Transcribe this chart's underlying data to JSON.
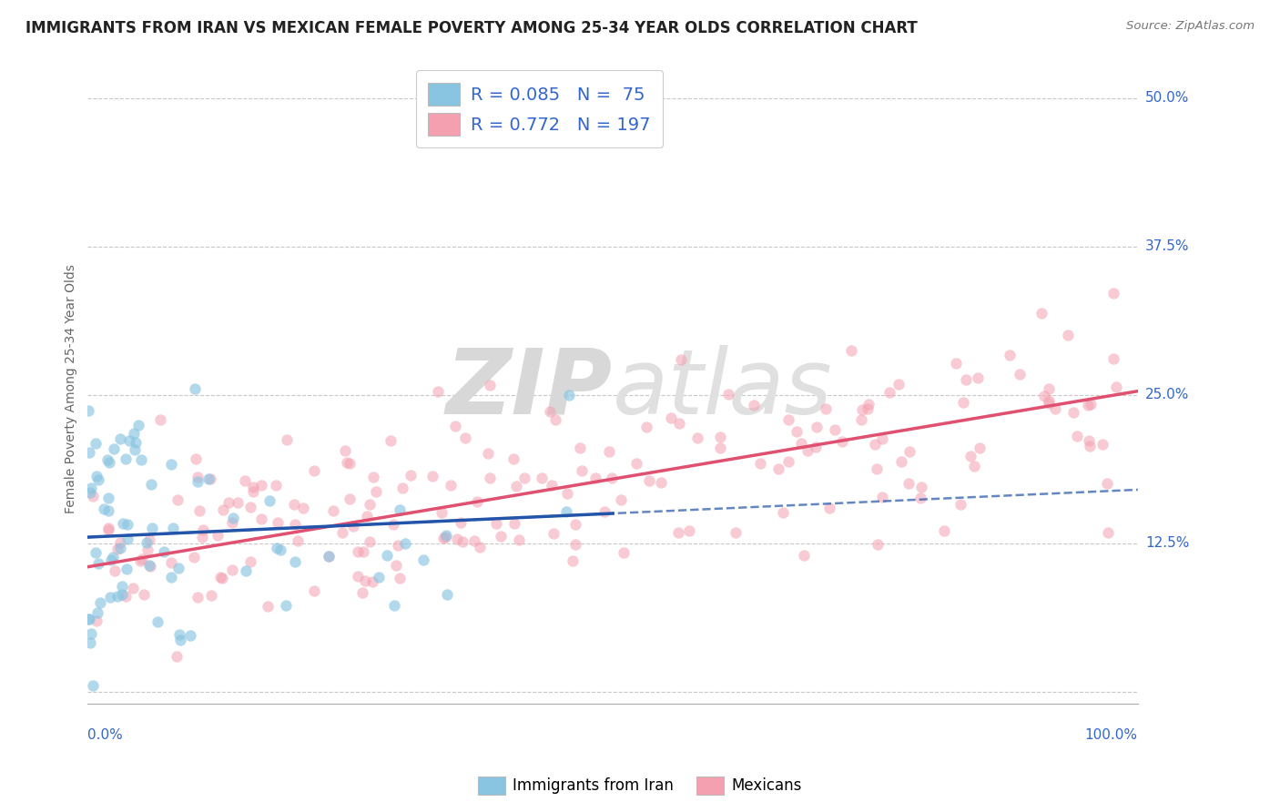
{
  "title": "IMMIGRANTS FROM IRAN VS MEXICAN FEMALE POVERTY AMONG 25-34 YEAR OLDS CORRELATION CHART",
  "source": "Source: ZipAtlas.com",
  "ylabel": "Female Poverty Among 25-34 Year Olds",
  "xlim": [
    0,
    100
  ],
  "ylim": [
    -1,
    52
  ],
  "yticks": [
    0,
    12.5,
    25.0,
    37.5,
    50.0
  ],
  "ytick_labels": [
    "",
    "12.5%",
    "25.0%",
    "37.5%",
    "50.0%"
  ],
  "iran_color": "#89c4e1",
  "iran_color_line": "#2255aa",
  "iran_color_line_dash": "#6699cc",
  "mexican_color": "#f4a0b0",
  "mexican_color_line": "#e05070",
  "iran_R": 0.085,
  "iran_N": 75,
  "mexican_R": 0.772,
  "mexican_N": 197,
  "legend_text_color": "#3366cc",
  "watermark_zip": "ZIP",
  "watermark_atlas": "atlas",
  "background_color": "#ffffff",
  "grid_color": "#c8c8c8",
  "title_fontsize": 12,
  "axis_label_fontsize": 10,
  "legend_fontsize": 14,
  "iran_scatter_alpha": 0.65,
  "mexican_scatter_alpha": 0.55,
  "iran_scatter_size": 80,
  "mexican_scatter_size": 80,
  "iran_line_slope": 0.04,
  "iran_line_intercept": 13.0,
  "mexican_line_slope": 0.148,
  "mexican_line_intercept": 10.5
}
